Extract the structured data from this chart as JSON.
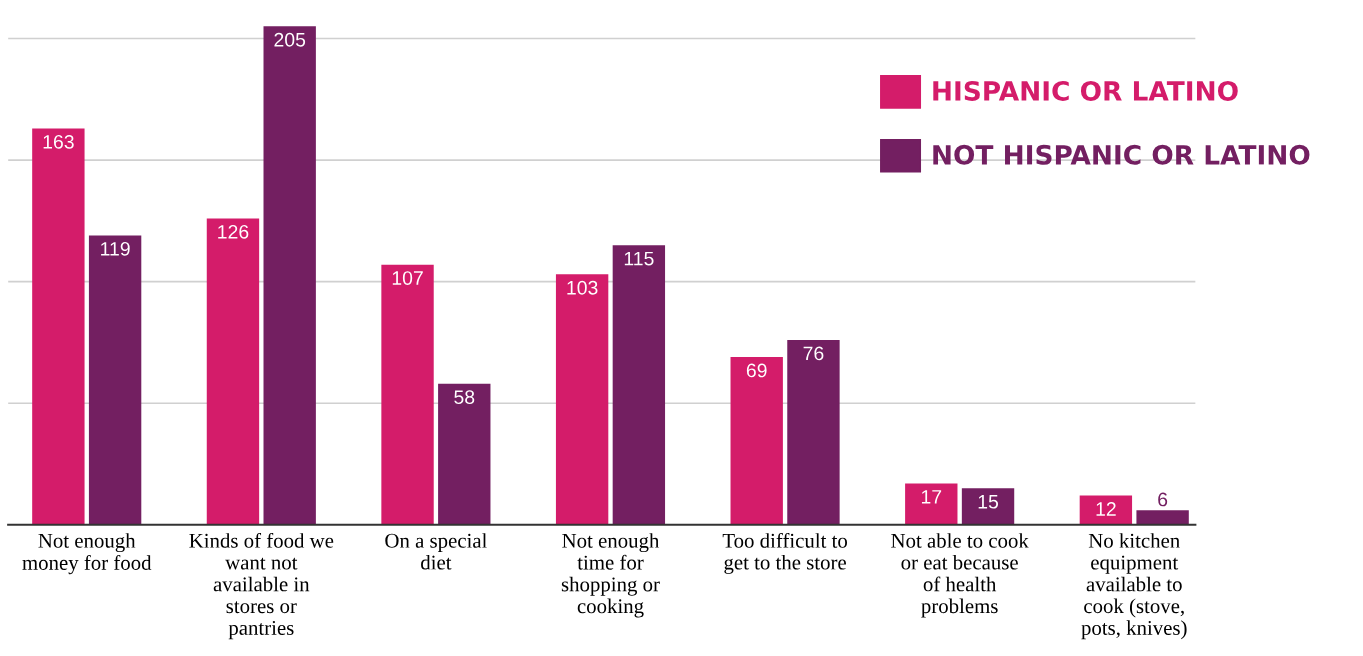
{
  "chart_data": {
    "type": "bar",
    "categories": [
      "Not enough\nmoney for food",
      "Kinds of food we\nwant not\navailable in\nstores or\npantries",
      "On a special\ndiet",
      "Not enough\ntime for\nshopping or\ncooking",
      "Too difficult to\nget to the store",
      "Not able to cook\nor eat because\nof health\nproblems",
      "No kitchen\nequipment\navailable to\ncook (stove,\npots, knives)"
    ],
    "series": [
      {
        "name": "HISPANIC OR LATINO",
        "color": "#d41c6a",
        "values": [
          163,
          126,
          107,
          103,
          69,
          17,
          12
        ]
      },
      {
        "name": "NOT HISPANIC OR LATINO",
        "color": "#731f61",
        "values": [
          119,
          205,
          58,
          115,
          76,
          15,
          6
        ]
      }
    ],
    "yticks": [
      {
        "value": 0,
        "label": null
      },
      {
        "value": 50,
        "label": null
      },
      {
        "value": 100,
        "label": null
      },
      {
        "value": 150,
        "label": null
      },
      {
        "value": 200,
        "label": null
      }
    ],
    "tick_labels": "x",
    "grid": "y",
    "legend": "top right",
    "data_labels": true
  }
}
